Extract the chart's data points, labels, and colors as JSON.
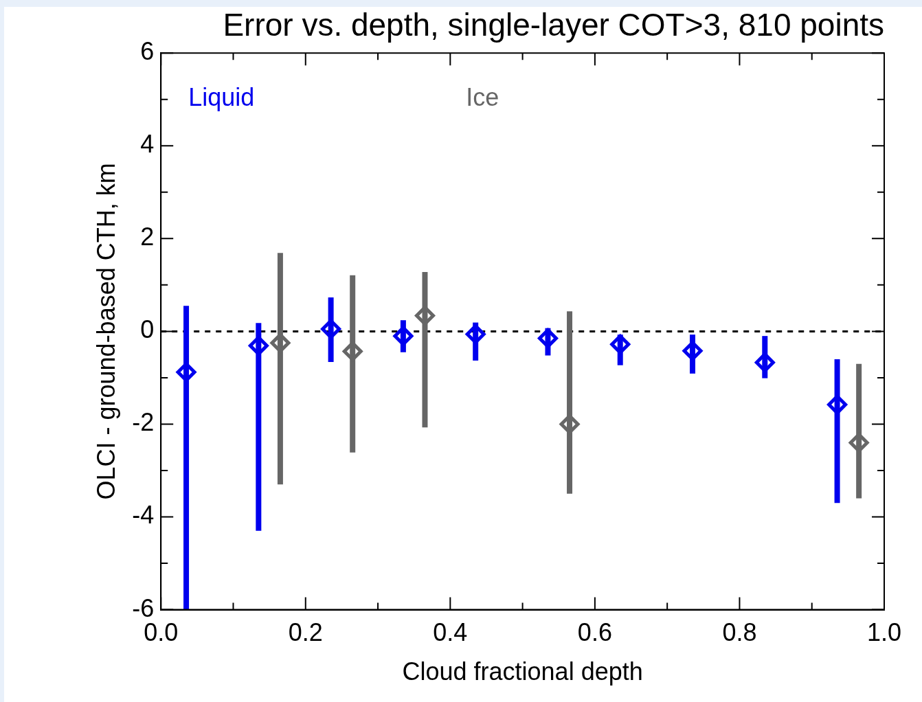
{
  "chart_data": {
    "type": "scatter",
    "title": "Error vs. depth, single-layer COT>3, 810 points",
    "xlabel": "Cloud fractional depth",
    "ylabel": "OLCI - ground-based CTH, km",
    "xlim": [
      0,
      1
    ],
    "ylim": [
      -6,
      6
    ],
    "xticks": [
      {
        "value": 0,
        "label": "0.0"
      },
      {
        "value": 0.1,
        "label": null
      },
      {
        "value": 0.2,
        "label": "0.2"
      },
      {
        "value": 0.3,
        "label": null
      },
      {
        "value": 0.4,
        "label": "0.4"
      },
      {
        "value": 0.5,
        "label": null
      },
      {
        "value": 0.6,
        "label": "0.6"
      },
      {
        "value": 0.7,
        "label": null
      },
      {
        "value": 0.8,
        "label": "0.8"
      },
      {
        "value": 0.9,
        "label": null
      },
      {
        "value": 1,
        "label": "1.0"
      }
    ],
    "yticks": [
      -6,
      {
        "value": -5,
        "label": null
      },
      -4,
      {
        "value": -3,
        "label": null
      },
      -2,
      {
        "value": -1,
        "label": null
      },
      0,
      {
        "value": 1,
        "label": null
      },
      2,
      {
        "value": 3,
        "label": null
      },
      4,
      {
        "value": 5,
        "label": null
      },
      6
    ],
    "grid": false,
    "legend": "top",
    "marker": "diamond",
    "ref_lines": [
      {
        "axis": "y",
        "value": 0,
        "color": "#000000",
        "line_style": "dashed"
      }
    ],
    "series": [
      {
        "name": "Liquid",
        "color": "#0000ee",
        "x": [
          0.035,
          0.135,
          0.235,
          0.335,
          0.435,
          0.535,
          0.635,
          0.735,
          0.835,
          0.935
        ],
        "values": [
          -0.88,
          -0.31,
          0.05,
          -0.1,
          -0.06,
          -0.15,
          -0.28,
          -0.42,
          -0.67,
          -1.58
        ],
        "errors": [
          [
            -6,
            0.55
          ],
          [
            -4.3,
            0.18
          ],
          [
            -0.66,
            0.73
          ],
          [
            -0.45,
            0.24
          ],
          [
            -0.63,
            0.19
          ],
          [
            -0.52,
            0.07
          ],
          [
            -0.73,
            -0.07
          ],
          [
            -0.91,
            -0.07
          ],
          [
            -1.01,
            -0.1
          ],
          [
            -3.7,
            -0.6
          ]
        ]
      },
      {
        "name": "Ice",
        "color": "#666666",
        "x": [
          0.165,
          0.265,
          0.365,
          0.565,
          0.965
        ],
        "values": [
          -0.25,
          -0.43,
          0.34,
          -2.0,
          -2.4
        ],
        "errors": [
          [
            -3.3,
            1.69
          ],
          [
            -2.61,
            1.21
          ],
          [
            -2.07,
            1.28
          ],
          [
            -3.5,
            0.43
          ],
          [
            -3.6,
            -0.7
          ]
        ]
      }
    ]
  }
}
